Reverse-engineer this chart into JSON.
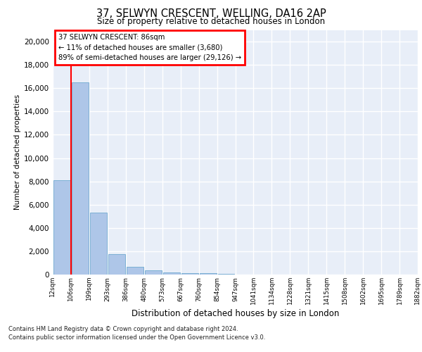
{
  "title": "37, SELWYN CRESCENT, WELLING, DA16 2AP",
  "subtitle": "Size of property relative to detached houses in London",
  "xlabel": "Distribution of detached houses by size in London",
  "ylabel": "Number of detached properties",
  "bar_values": [
    8100,
    16500,
    5300,
    1750,
    650,
    350,
    200,
    150,
    100,
    50,
    30,
    20,
    10,
    5,
    3,
    2,
    1,
    1,
    1,
    1
  ],
  "bar_color": "#aec6e8",
  "bar_edge_color": "#7bafd4",
  "x_labels": [
    "12sqm",
    "106sqm",
    "199sqm",
    "293sqm",
    "386sqm",
    "480sqm",
    "573sqm",
    "667sqm",
    "760sqm",
    "854sqm",
    "947sqm",
    "1041sqm",
    "1134sqm",
    "1228sqm",
    "1321sqm",
    "1415sqm",
    "1508sqm",
    "1602sqm",
    "1695sqm",
    "1789sqm",
    "1882sqm"
  ],
  "ylim": [
    0,
    21000
  ],
  "yticks": [
    0,
    2000,
    4000,
    6000,
    8000,
    10000,
    12000,
    14000,
    16000,
    18000,
    20000
  ],
  "red_line_x": 0.5,
  "annotation_title": "37 SELWYN CRESCENT: 86sqm",
  "annotation_line1": "← 11% of detached houses are smaller (3,680)",
  "annotation_line2": "89% of semi-detached houses are larger (29,126) →",
  "footer_line1": "Contains HM Land Registry data © Crown copyright and database right 2024.",
  "footer_line2": "Contains public sector information licensed under the Open Government Licence v3.0.",
  "background_color": "#e8eef8",
  "grid_color": "#ffffff"
}
